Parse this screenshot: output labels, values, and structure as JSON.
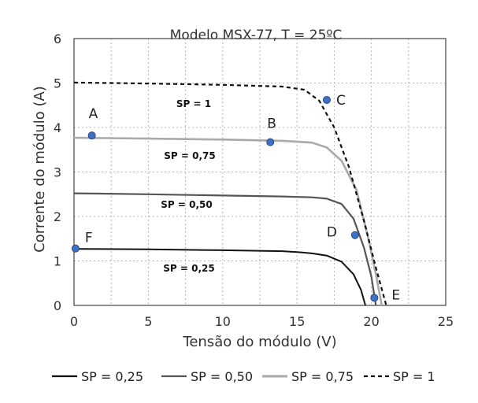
{
  "chart_data": {
    "type": "line",
    "title": "Modelo MSX-77, T = 25ºC",
    "xlabel": "Tensão do módulo (V)",
    "ylabel": "Corrente do módulo (A)",
    "xlim": [
      0,
      25
    ],
    "ylim": [
      0,
      6
    ],
    "xticks": [
      0,
      5,
      10,
      15,
      20,
      25
    ],
    "yticks": [
      0,
      1,
      2,
      3,
      4,
      5,
      6
    ],
    "grid": true,
    "legend_position": "bottom",
    "series": [
      {
        "name": "SP = 0,25",
        "label": "SP = 0,25",
        "color": "#111111",
        "dash": "solid",
        "points": [
          [
            0,
            1.27
          ],
          [
            5,
            1.26
          ],
          [
            10,
            1.24
          ],
          [
            14,
            1.22
          ],
          [
            15,
            1.2
          ],
          [
            16,
            1.17
          ],
          [
            17,
            1.12
          ],
          [
            18,
            0.98
          ],
          [
            18.8,
            0.7
          ],
          [
            19.3,
            0.35
          ],
          [
            19.6,
            0.0
          ]
        ]
      },
      {
        "name": "SP = 0,50",
        "label": "SP = 0,50",
        "color": "#555555",
        "dash": "solid",
        "points": [
          [
            0,
            2.52
          ],
          [
            5,
            2.5
          ],
          [
            10,
            2.47
          ],
          [
            14,
            2.45
          ],
          [
            16,
            2.43
          ],
          [
            17,
            2.4
          ],
          [
            18,
            2.28
          ],
          [
            18.8,
            1.95
          ],
          [
            19.5,
            1.3
          ],
          [
            20,
            0.65
          ],
          [
            20.3,
            0.0
          ]
        ]
      },
      {
        "name": "SP = 0,75",
        "label": "SP = 0,75",
        "color": "#aaaaaa",
        "dash": "solid",
        "points": [
          [
            0,
            3.77
          ],
          [
            5,
            3.75
          ],
          [
            10,
            3.73
          ],
          [
            14,
            3.7
          ],
          [
            16,
            3.66
          ],
          [
            17,
            3.55
          ],
          [
            18,
            3.25
          ],
          [
            19,
            2.6
          ],
          [
            19.8,
            1.5
          ],
          [
            20.3,
            0.7
          ],
          [
            20.7,
            0.0
          ]
        ]
      },
      {
        "name": "SP = 1",
        "label": "SP = 1",
        "color": "#111111",
        "dash": "dashed",
        "points": [
          [
            0,
            5.01
          ],
          [
            5,
            4.99
          ],
          [
            10,
            4.96
          ],
          [
            14,
            4.92
          ],
          [
            15.5,
            4.85
          ],
          [
            16.5,
            4.6
          ],
          [
            17.5,
            4.0
          ],
          [
            18.5,
            3.1
          ],
          [
            19.5,
            1.9
          ],
          [
            20.3,
            0.85
          ],
          [
            21,
            0.0
          ]
        ]
      }
    ],
    "annotations": [
      {
        "label": "A",
        "x": 1.2,
        "y": 3.82
      },
      {
        "label": "B",
        "x": 13.2,
        "y": 3.67
      },
      {
        "label": "C",
        "x": 17.0,
        "y": 4.62
      },
      {
        "label": "D",
        "x": 18.9,
        "y": 1.58
      },
      {
        "label": "E",
        "x": 20.2,
        "y": 0.17
      },
      {
        "label": "F",
        "x": 0.1,
        "y": 1.28
      }
    ]
  }
}
